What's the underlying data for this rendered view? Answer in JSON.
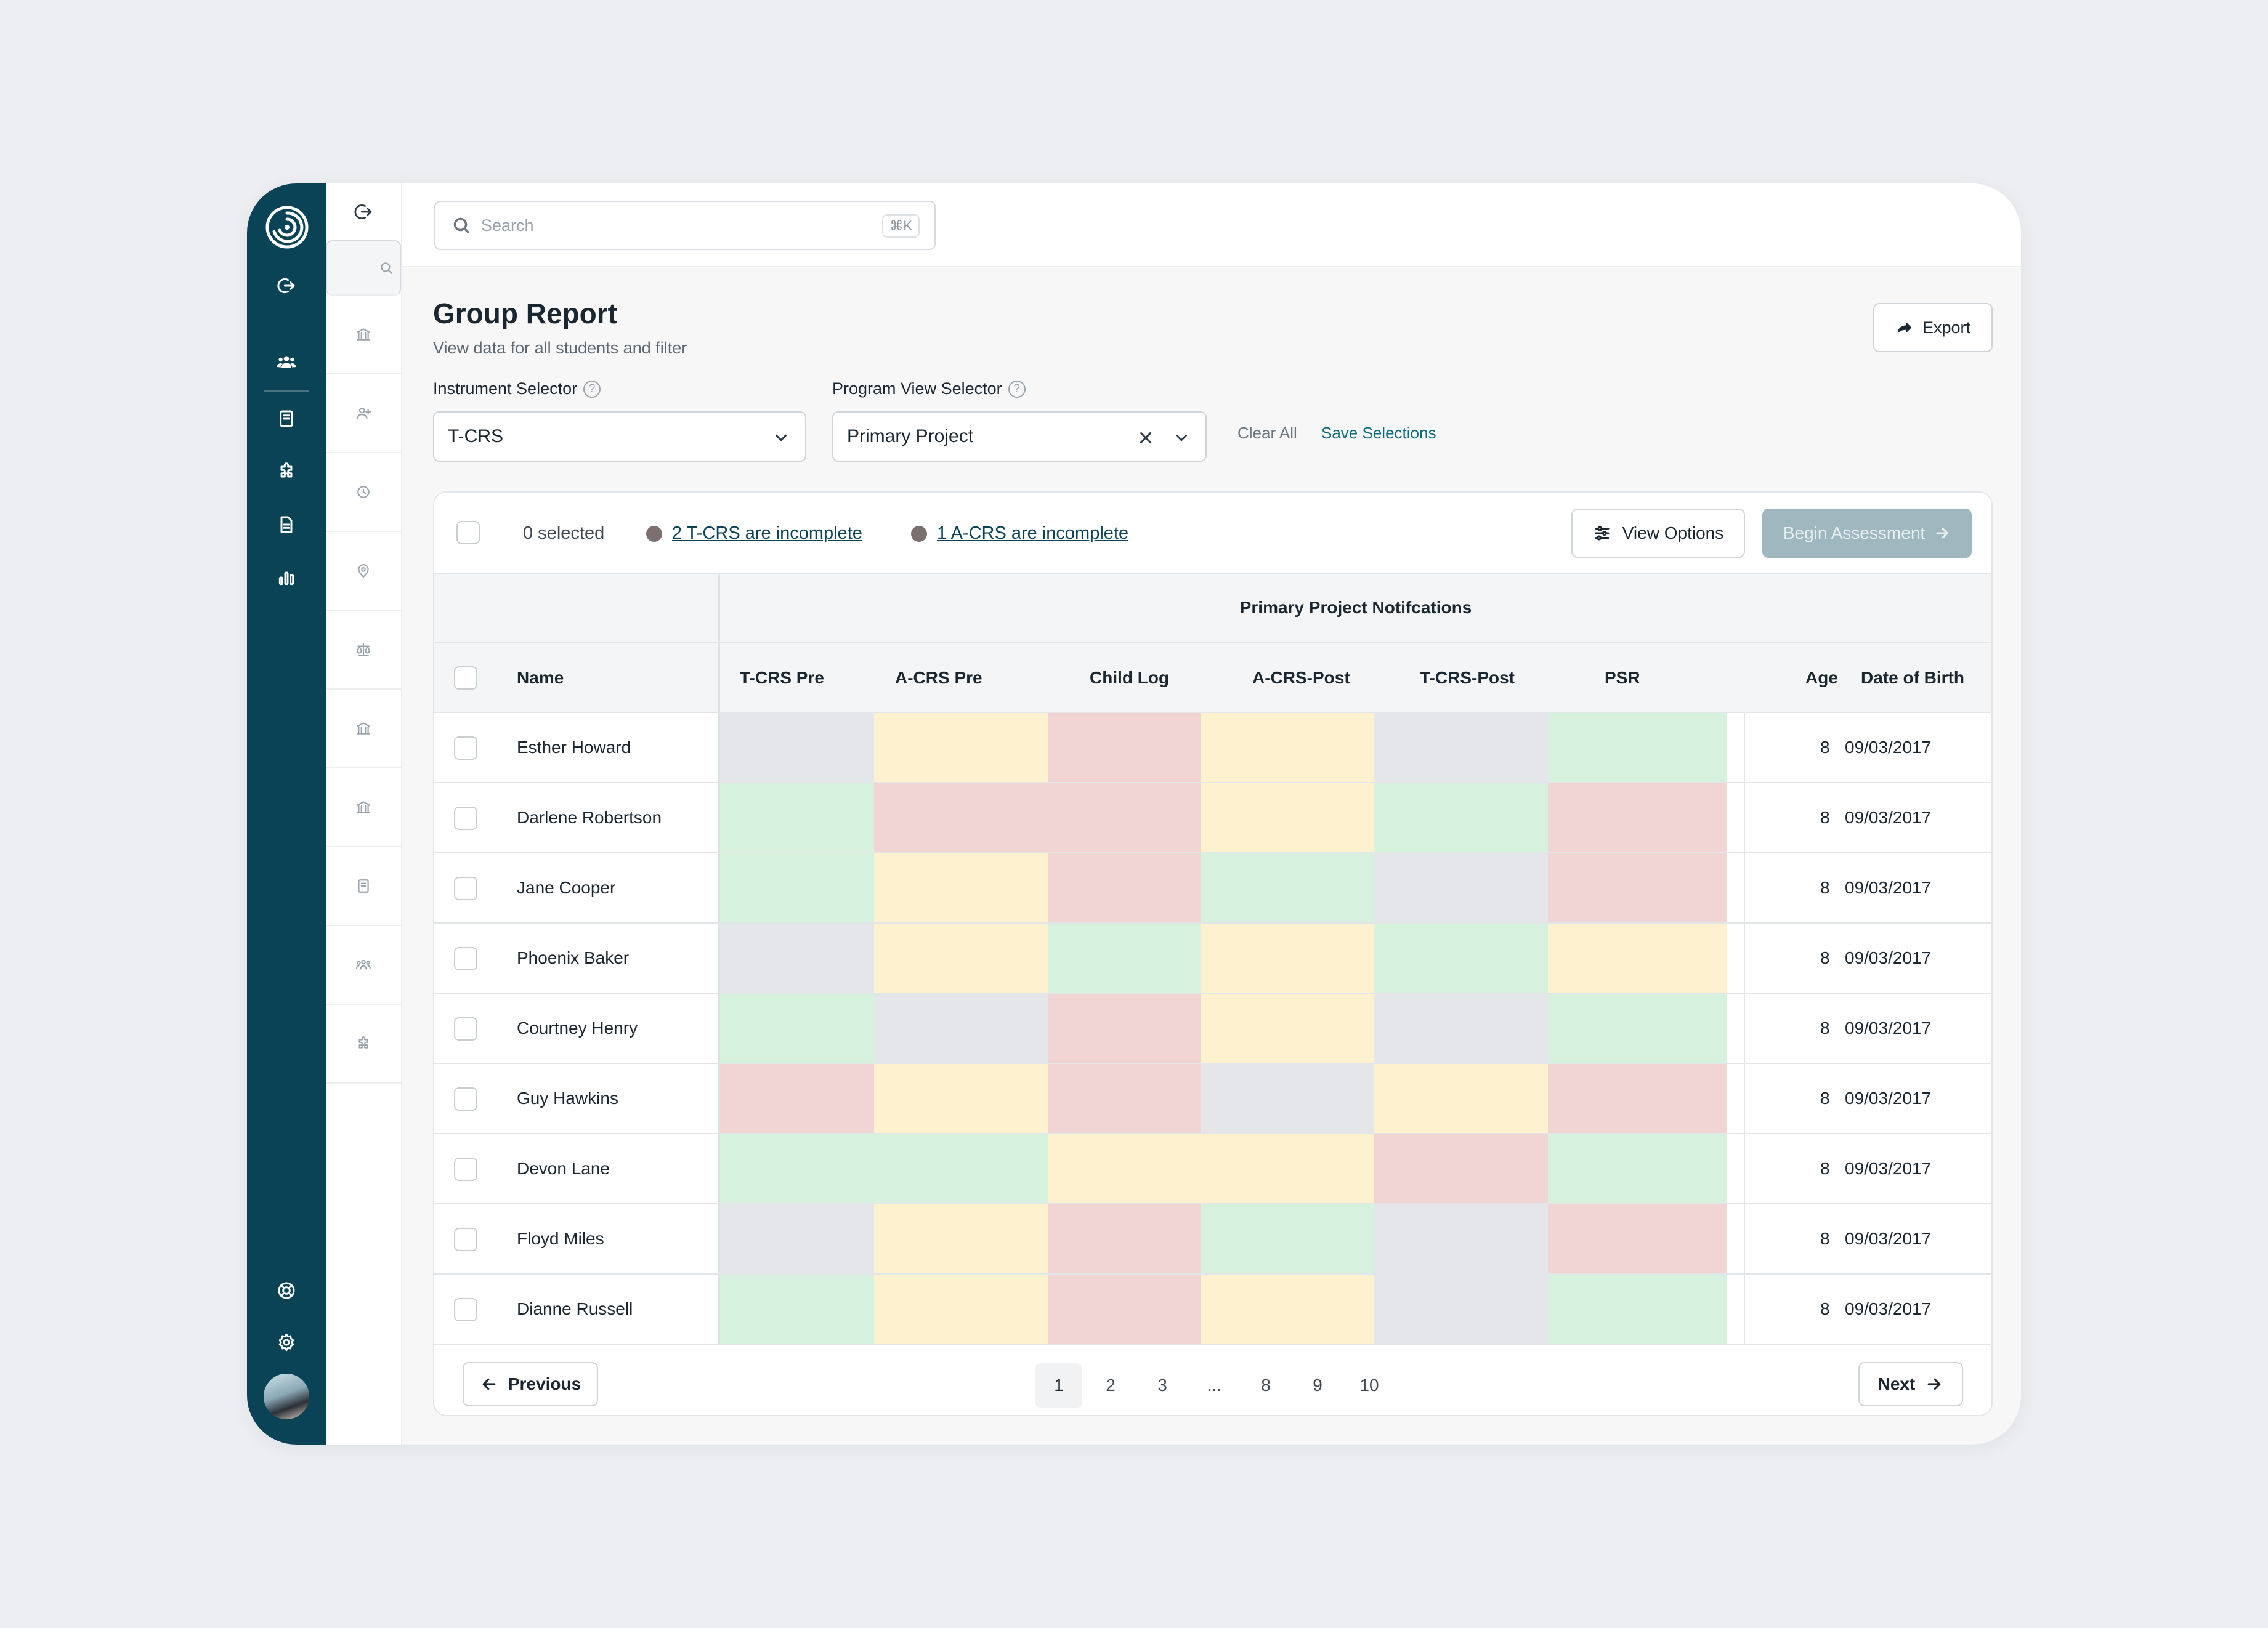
{
  "search": {
    "placeholder": "Search",
    "shortcut": "⌘K"
  },
  "header": {
    "title": "Group Report",
    "subtitle": "View data for all students and filter",
    "export_label": "Export"
  },
  "filters": {
    "instrument_label": "Instrument Selector",
    "instrument_value": "T-CRS",
    "program_label": "Program View Selector",
    "program_value": "Primary Project",
    "clear_all": "Clear All",
    "save_selections": "Save Selections"
  },
  "toolbar": {
    "selected_text": "0 selected",
    "warning_tcrs": "2 T-CRS are incomplete",
    "warning_acrs": "1 A-CRS are incomplete",
    "view_options": "View Options",
    "begin_assessment": "Begin Assessment"
  },
  "table": {
    "group_header": "Primary Project Notifcations",
    "columns": [
      "Name",
      "T-CRS Pre",
      "A-CRS Pre",
      "Child Log",
      "A-CRS-Post",
      "T-CRS-Post",
      "PSR",
      "Age",
      "Date of Birth"
    ],
    "status_colors": {
      "gray": "#e5e6e9",
      "yellow": "#fdf1cf",
      "red": "#f1d5d5",
      "green": "#d6f2de"
    },
    "rows": [
      {
        "name": "Esther Howard",
        "status": [
          "gray",
          "yellow",
          "red",
          "yellow",
          "gray",
          "green"
        ],
        "age": "8",
        "dob": "09/03/2017"
      },
      {
        "name": "Darlene Robertson",
        "status": [
          "green",
          "red",
          "red",
          "yellow",
          "green",
          "red"
        ],
        "age": "8",
        "dob": "09/03/2017"
      },
      {
        "name": "Jane Cooper",
        "status": [
          "green",
          "yellow",
          "red",
          "green",
          "gray",
          "red"
        ],
        "age": "8",
        "dob": "09/03/2017"
      },
      {
        "name": "Phoenix Baker",
        "status": [
          "gray",
          "yellow",
          "green",
          "yellow",
          "green",
          "yellow"
        ],
        "age": "8",
        "dob": "09/03/2017"
      },
      {
        "name": "Courtney Henry",
        "status": [
          "green",
          "gray",
          "red",
          "yellow",
          "gray",
          "green"
        ],
        "age": "8",
        "dob": "09/03/2017"
      },
      {
        "name": "Guy Hawkins",
        "status": [
          "red",
          "yellow",
          "red",
          "gray",
          "yellow",
          "red"
        ],
        "age": "8",
        "dob": "09/03/2017"
      },
      {
        "name": "Devon Lane",
        "status": [
          "green",
          "green",
          "yellow",
          "yellow",
          "red",
          "green"
        ],
        "age": "8",
        "dob": "09/03/2017"
      },
      {
        "name": "Floyd Miles",
        "status": [
          "gray",
          "yellow",
          "red",
          "green",
          "gray",
          "red"
        ],
        "age": "8",
        "dob": "09/03/2017"
      },
      {
        "name": "Dianne Russell",
        "status": [
          "green",
          "yellow",
          "red",
          "yellow",
          "gray",
          "green"
        ],
        "age": "8",
        "dob": "09/03/2017"
      }
    ]
  },
  "pagination": {
    "previous": "Previous",
    "next": "Next",
    "pages": [
      "1",
      "2",
      "3",
      "...",
      "8",
      "9",
      "10"
    ],
    "active_page": "1"
  },
  "colors": {
    "brand_dark": "#0b4356",
    "accent_link": "#0e6b7a",
    "disabled_button": "#9fb8c0"
  }
}
